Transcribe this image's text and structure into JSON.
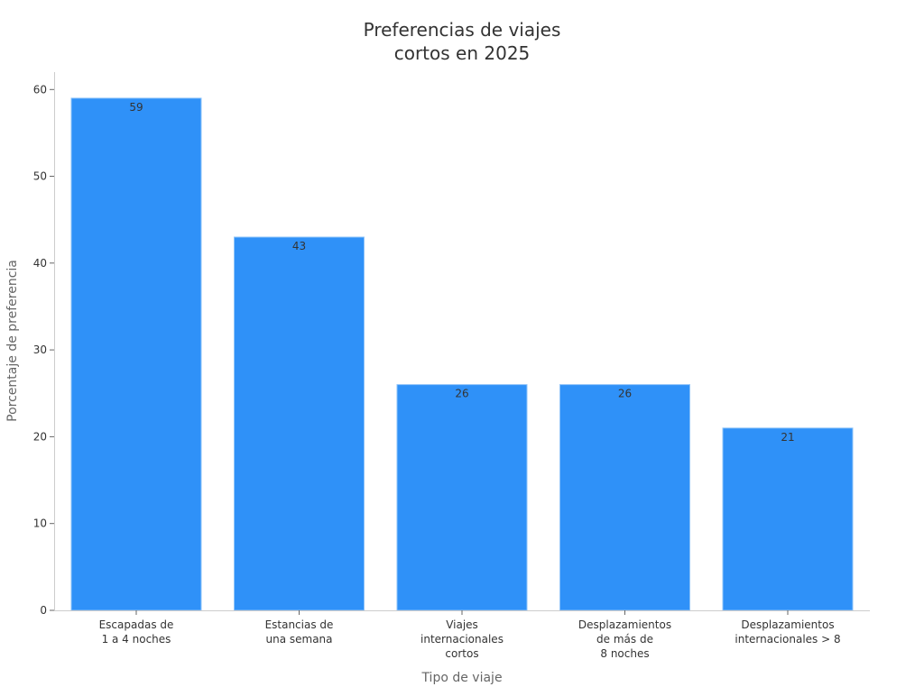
{
  "chart_data": {
    "type": "bar",
    "title_lines": [
      "Preferencias de viajes",
      "cortos en 2025"
    ],
    "xlabel": "Tipo de viaje",
    "ylabel": "Porcentaje de preferencia",
    "ylim": [
      0,
      62
    ],
    "yticks": [
      0,
      10,
      20,
      30,
      40,
      50,
      60
    ],
    "categories": [
      [
        "Escapadas de",
        "1 a 4 noches"
      ],
      [
        "Estancias de",
        "una semana"
      ],
      [
        "Viajes",
        "internacionales",
        "cortos"
      ],
      [
        "Desplazamientos",
        "de más de",
        "8 noches"
      ],
      [
        "Desplazamientos",
        "internacionales > 8"
      ]
    ],
    "values": [
      59,
      43,
      26,
      26,
      21
    ],
    "data_labels": [
      "59",
      "43",
      "26",
      "26",
      "21"
    ],
    "grid": false,
    "legend": "none",
    "colors": {
      "bar": "#2f91f8",
      "bar_edge": "#8ec3f9",
      "axis": "#cccccc",
      "title": "#333333",
      "tick_text": "#333333",
      "axis_label": "#666666",
      "data_label": "#333333"
    }
  }
}
